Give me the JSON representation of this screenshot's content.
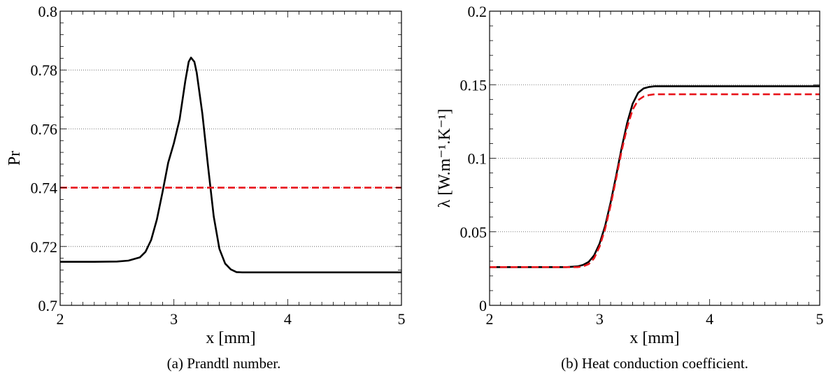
{
  "chart_data": [
    {
      "type": "line",
      "caption": "(a) Prandtl number.",
      "xlabel": "x [mm]",
      "ylabel": "Pr",
      "xlim": [
        2,
        5
      ],
      "ylim": [
        0.7,
        0.8
      ],
      "xticks": [
        2,
        3,
        4,
        5
      ],
      "xtick_labels": [
        "2",
        "3",
        "4",
        "5"
      ],
      "yticks": [
        0.7,
        0.72,
        0.74,
        0.76,
        0.78,
        0.8
      ],
      "ytick_labels": [
        "0.7",
        "0.72",
        "0.74",
        "0.76",
        "0.78",
        "0.8"
      ],
      "grid": "horizontal dotted",
      "series": [
        {
          "color": "#000000",
          "dash": "solid",
          "x": [
            2.0,
            2.3,
            2.5,
            2.6,
            2.7,
            2.75,
            2.8,
            2.85,
            2.9,
            2.95,
            3.0,
            3.05,
            3.1,
            3.13,
            3.15,
            3.18,
            3.2,
            3.25,
            3.3,
            3.35,
            3.4,
            3.45,
            3.5,
            3.55,
            3.6,
            3.8,
            4.0,
            4.5,
            5.0
          ],
          "y": [
            0.7148,
            0.7148,
            0.7149,
            0.7152,
            0.7163,
            0.7182,
            0.7222,
            0.7292,
            0.7385,
            0.7485,
            0.7552,
            0.7632,
            0.7762,
            0.7828,
            0.7842,
            0.7828,
            0.7792,
            0.7652,
            0.7472,
            0.7302,
            0.7192,
            0.7142,
            0.7122,
            0.7113,
            0.7112,
            0.7112,
            0.7112,
            0.7112,
            0.7112
          ]
        },
        {
          "color": "#e8141b",
          "dash": "dashed",
          "x": [
            2.0,
            5.0
          ],
          "y": [
            0.74,
            0.74
          ]
        }
      ]
    },
    {
      "type": "line",
      "caption": "(b) Heat conduction coefficient.",
      "xlabel": "x [mm]",
      "ylabel": "λ [W.m⁻¹.K⁻¹]",
      "xlim": [
        2,
        5
      ],
      "ylim": [
        0,
        0.2
      ],
      "xticks": [
        2,
        3,
        4,
        5
      ],
      "xtick_labels": [
        "2",
        "3",
        "4",
        "5"
      ],
      "yticks": [
        0,
        0.05,
        0.1,
        0.15,
        0.2
      ],
      "ytick_labels": [
        "0",
        "0.05",
        "0.1",
        "0.15",
        "0.2"
      ],
      "grid": "horizontal dotted",
      "series": [
        {
          "color": "#000000",
          "dash": "solid",
          "x": [
            2.0,
            2.5,
            2.7,
            2.8,
            2.85,
            2.9,
            2.95,
            3.0,
            3.05,
            3.1,
            3.15,
            3.2,
            3.25,
            3.3,
            3.35,
            3.4,
            3.45,
            3.5,
            3.55,
            3.6,
            4.0,
            5.0
          ],
          "y": [
            0.026,
            0.026,
            0.026,
            0.0265,
            0.0275,
            0.0295,
            0.034,
            0.042,
            0.054,
            0.07,
            0.088,
            0.107,
            0.124,
            0.137,
            0.1445,
            0.1475,
            0.1485,
            0.149,
            0.149,
            0.149,
            0.149,
            0.149
          ]
        },
        {
          "color": "#e8141b",
          "dash": "dashed",
          "x": [
            2.0,
            2.5,
            2.7,
            2.8,
            2.85,
            2.9,
            2.95,
            3.0,
            3.05,
            3.1,
            3.15,
            3.2,
            3.25,
            3.3,
            3.35,
            3.4,
            3.45,
            3.5,
            3.55,
            3.6,
            4.0,
            5.0
          ],
          "y": [
            0.026,
            0.026,
            0.026,
            0.026,
            0.0265,
            0.028,
            0.032,
            0.04,
            0.052,
            0.068,
            0.086,
            0.105,
            0.121,
            0.133,
            0.1395,
            0.142,
            0.143,
            0.1435,
            0.1435,
            0.1435,
            0.1435,
            0.1435
          ]
        }
      ]
    }
  ]
}
